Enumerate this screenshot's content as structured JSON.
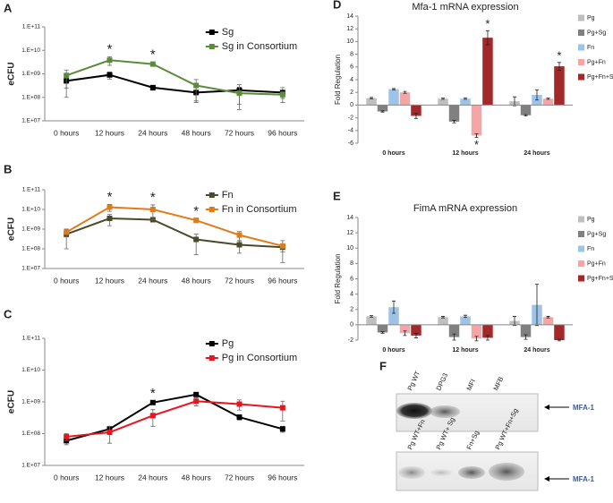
{
  "chart_data": [
    {
      "type": "line",
      "label": "A",
      "ylabel": "eCFU",
      "log": true,
      "categories": [
        "0 hours",
        "12 hours",
        "24 hours",
        "48 hours",
        "72 hours",
        "96 hours"
      ],
      "ylim": [
        10000000,
        100000000000
      ],
      "yticks": [
        {
          "value": 10000000,
          "label": "1.E+07"
        },
        {
          "value": 100000000,
          "label": "1.E+08"
        },
        {
          "value": 1000000000,
          "label": "1.E+09"
        },
        {
          "value": 10000000000,
          "label": "1.E+10"
        },
        {
          "value": 100000000000,
          "label": "1.E+11"
        }
      ],
      "legend": "upper right",
      "series": [
        {
          "name": "Sg",
          "color": "#000000",
          "values": [
            500000000,
            900000000,
            260000000,
            160000000,
            200000000,
            160000000
          ],
          "errors": [
            400000000,
            300000000,
            60000000,
            100000000,
            150000000,
            100000000
          ]
        },
        {
          "name": "Sg in Consortium",
          "color": "#5b8c3a",
          "values": [
            850000000,
            3800000000,
            2600000000,
            320000000,
            150000000,
            130000000
          ],
          "errors": [
            600000000,
            1500000000,
            500000000,
            250000000,
            120000000,
            40000000
          ]
        }
      ],
      "significance": [
        null,
        "*",
        "*",
        null,
        null,
        null
      ]
    },
    {
      "type": "line",
      "label": "B",
      "ylabel": "eCFU",
      "log": true,
      "categories": [
        "0 hours",
        "12 hours",
        "24 hours",
        "48 hours",
        "72 hours",
        "96 hours"
      ],
      "ylim": [
        10000000,
        100000000000
      ],
      "yticks": [
        {
          "value": 10000000,
          "label": "1.E+07"
        },
        {
          "value": 100000000,
          "label": "1.E+08"
        },
        {
          "value": 1000000000,
          "label": "1.E+09"
        },
        {
          "value": 10000000000,
          "label": "1.E+10"
        },
        {
          "value": 100000000000,
          "label": "1.E+11"
        }
      ],
      "legend": "upper right",
      "series": [
        {
          "name": "Fn",
          "color": "#4a4a2a",
          "values": [
            550000000,
            3500000000,
            3000000000,
            300000000,
            160000000,
            120000000
          ],
          "errors": [
            450000000,
            2000000000,
            500000000,
            250000000,
            100000000,
            50000000
          ]
        },
        {
          "name": "Fn in Consortium",
          "color": "#e07b1a",
          "values": [
            700000000,
            13000000000,
            10000000000,
            2800000000,
            500000000,
            140000000
          ],
          "errors": [
            300000000,
            5000000000,
            7000000000,
            500000000,
            250000000,
            120000000
          ]
        }
      ],
      "significance": [
        null,
        "*",
        "*",
        "*",
        null,
        null
      ]
    },
    {
      "type": "line",
      "label": "C",
      "ylabel": "eCFU",
      "log": true,
      "categories": [
        "0 hours",
        "12 hours",
        "24 hours",
        "48 hours",
        "72 hours",
        "96 hours"
      ],
      "ylim": [
        10000000,
        100000000000
      ],
      "yticks": [
        {
          "value": 10000000,
          "label": "1.E+07"
        },
        {
          "value": 100000000,
          "label": "1.E+08"
        },
        {
          "value": 1000000000,
          "label": "1.E+09"
        },
        {
          "value": 10000000000,
          "label": "1.E+10"
        },
        {
          "value": 100000000000,
          "label": "1.E+11"
        }
      ],
      "legend": "upper right",
      "series": [
        {
          "name": "Pg",
          "color": "#000000",
          "values": [
            60000000,
            140000000,
            950000000,
            1700000000,
            330000000,
            140000000
          ],
          "errors": [
            15000000,
            20000000,
            100000000,
            200000000,
            60000000,
            30000000
          ]
        },
        {
          "name": "Pg in Consortium",
          "color": "#e8141e",
          "values": [
            80000000,
            110000000,
            370000000,
            1050000000,
            850000000,
            650000000
          ],
          "errors": [
            20000000,
            60000000,
            200000000,
            300000000,
            300000000,
            400000000
          ]
        }
      ],
      "significance": [
        null,
        null,
        "*",
        null,
        null,
        null
      ]
    },
    {
      "type": "bar",
      "label": "D",
      "title": "Mfa-1 mRNA expression",
      "ylabel": "Fold Regulation",
      "categories": [
        "0 hours",
        "12 hours",
        "24 hours"
      ],
      "ylim": [
        -6,
        14
      ],
      "yticks": [
        -6,
        -4,
        -2,
        0,
        2,
        4,
        6,
        8,
        10,
        12,
        14
      ],
      "legend": "right",
      "series": [
        {
          "name": "Pg",
          "color": "#bfbfbf",
          "values": [
            1.1,
            1.0,
            0.6
          ],
          "errors": [
            0.1,
            0.1,
            0.7
          ]
        },
        {
          "name": "Pg+Sg",
          "color": "#808080",
          "values": [
            -1.0,
            -2.6,
            -1.6
          ],
          "errors": [
            0.1,
            0.2,
            0.1
          ]
        },
        {
          "name": "Fn",
          "color": "#9dc3e6",
          "values": [
            2.5,
            1.0,
            1.6
          ],
          "errors": [
            0.1,
            0.1,
            0.8
          ]
        },
        {
          "name": "Pg+Fn",
          "color": "#f4a6a6",
          "values": [
            2.0,
            -4.8,
            1.0
          ],
          "errors": [
            0.15,
            0.3,
            0.1
          ],
          "significance": [
            null,
            "*",
            null
          ]
        },
        {
          "name": "Pg+Fn+Sg",
          "color": "#a3282a",
          "values": [
            -1.7,
            10.6,
            6.1
          ],
          "errors": [
            0.4,
            1.1,
            0.6
          ],
          "significance": [
            null,
            "*",
            "*"
          ]
        }
      ]
    },
    {
      "type": "bar",
      "label": "E",
      "title": "FimA mRNA expression",
      "ylabel": "Fold Regulation",
      "categories": [
        "0 hours",
        "12 hours",
        "24 hours"
      ],
      "ylim": [
        -2,
        14
      ],
      "yticks": [
        -2,
        0,
        2,
        4,
        6,
        8,
        10,
        12,
        14
      ],
      "legend": "right",
      "series": [
        {
          "name": "Pg",
          "color": "#bfbfbf",
          "values": [
            1.1,
            1.0,
            0.5
          ],
          "errors": [
            0.1,
            0.1,
            0.6
          ]
        },
        {
          "name": "Pg+Sg",
          "color": "#808080",
          "values": [
            -1.0,
            -1.6,
            -1.6
          ],
          "errors": [
            0.1,
            0.4,
            0.3
          ]
        },
        {
          "name": "Fn",
          "color": "#9dc3e6",
          "values": [
            2.3,
            1.1,
            2.6
          ],
          "errors": [
            0.8,
            0.15,
            2.7
          ]
        },
        {
          "name": "Pg+Fn",
          "color": "#f4a6a6",
          "values": [
            -1.1,
            -1.8,
            1.0
          ],
          "errors": [
            0.3,
            0.3,
            0.1
          ]
        },
        {
          "name": "Pg+Fn+Sg",
          "color": "#a3282a",
          "values": [
            -1.4,
            -1.7,
            -2.0
          ],
          "errors": [
            0.3,
            0.3,
            0.1
          ]
        }
      ]
    }
  ],
  "gel": {
    "label": "F",
    "top_lanes": [
      "Pg WT",
      "DPG3",
      "MFI",
      "MFB"
    ],
    "top_band": "MFA-1",
    "bottom_lanes": [
      "Pg WT+Fn",
      "Pg WT+ Sg",
      "Fn+Sg",
      "Pg WT+Fn+Sg"
    ],
    "bottom_band": "MFA-1"
  }
}
